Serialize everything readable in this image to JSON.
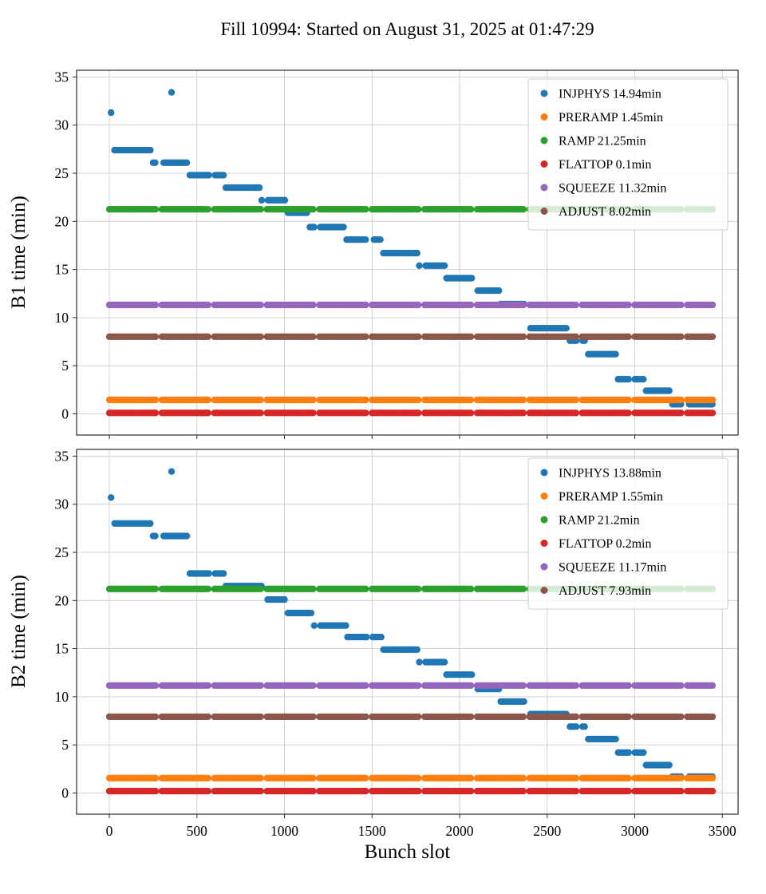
{
  "figure": {
    "title": "Fill 10994: Started on August 31, 2025 at 01:47:29",
    "xlabel": "Bunch slot",
    "background": "#ffffff"
  },
  "chart_data": [
    {
      "type": "scatter",
      "ylabel": "B1 time (min)",
      "xlim": [
        -187,
        3590
      ],
      "ylim": [
        -2.2,
        35.7
      ],
      "xticks": [
        0,
        500,
        1000,
        1500,
        2000,
        2500,
        3000,
        3500
      ],
      "yticks": [
        0,
        5,
        10,
        15,
        20,
        25,
        30,
        35
      ],
      "grid": true,
      "legend_position": "upper right",
      "legend": [
        {
          "label": "INJPHYS 14.94min",
          "color": "#1f77b4"
        },
        {
          "label": "PRERAMP 1.45min",
          "color": "#ff7f0e"
        },
        {
          "label": "RAMP 21.25min",
          "color": "#2ca02c"
        },
        {
          "label": "FLATTOP 0.1min",
          "color": "#d62728"
        },
        {
          "label": "SQUEEZE 11.32min",
          "color": "#9467bd"
        },
        {
          "label": "ADJUST 8.02min",
          "color": "#8c564b"
        }
      ],
      "series": [
        {
          "name": "INJPHYS",
          "color": "#1f77b4",
          "segments": [
            [
              30,
              240,
              27.4
            ],
            [
              250,
              450,
              26.1
            ],
            [
              460,
              655,
              24.8
            ],
            [
              665,
              860,
              23.5
            ],
            [
              870,
              1010,
              22.2
            ],
            [
              1020,
              1135,
              20.9
            ],
            [
              1145,
              1345,
              19.4
            ],
            [
              1355,
              1555,
              18.1
            ],
            [
              1565,
              1760,
              16.7
            ],
            [
              1770,
              1915,
              15.4
            ],
            [
              1925,
              2070,
              14.1
            ],
            [
              2080,
              2225,
              12.8
            ],
            [
              2235,
              2395,
              11.4
            ],
            [
              2405,
              2620,
              8.9
            ],
            [
              2630,
              2725,
              7.6
            ],
            [
              2735,
              2895,
              6.2
            ],
            [
              2905,
              3055,
              3.6
            ],
            [
              3065,
              3205,
              2.4
            ],
            [
              3215,
              3445,
              1.0
            ]
          ],
          "points": [
            [
              10,
              31.3
            ],
            [
              355,
              33.4
            ]
          ]
        },
        {
          "name": "PRERAMP",
          "color": "#ff7f0e",
          "segments": [
            [
              0,
              3445,
              1.45
            ]
          ],
          "points": []
        },
        {
          "name": "RAMP",
          "color": "#2ca02c",
          "segments": [
            [
              0,
              3445,
              21.25
            ]
          ],
          "points": []
        },
        {
          "name": "FLATTOP",
          "color": "#d62728",
          "segments": [
            [
              0,
              3445,
              0.1
            ]
          ],
          "points": []
        },
        {
          "name": "SQUEEZE",
          "color": "#9467bd",
          "segments": [
            [
              0,
              3445,
              11.32
            ]
          ],
          "points": []
        },
        {
          "name": "ADJUST",
          "color": "#8c564b",
          "segments": [
            [
              0,
              3445,
              8.02
            ]
          ],
          "points": []
        }
      ]
    },
    {
      "type": "scatter",
      "ylabel": "B2 time (min)",
      "xlim": [
        -187,
        3590
      ],
      "ylim": [
        -2.2,
        35.7
      ],
      "xticks": [
        0,
        500,
        1000,
        1500,
        2000,
        2500,
        3000,
        3500
      ],
      "yticks": [
        0,
        5,
        10,
        15,
        20,
        25,
        30,
        35
      ],
      "grid": true,
      "legend_position": "upper right",
      "legend": [
        {
          "label": "INJPHYS 13.88min",
          "color": "#1f77b4"
        },
        {
          "label": "PRERAMP 1.55min",
          "color": "#ff7f0e"
        },
        {
          "label": "RAMP 21.2min",
          "color": "#2ca02c"
        },
        {
          "label": "FLATTOP 0.2min",
          "color": "#d62728"
        },
        {
          "label": "SQUEEZE 11.17min",
          "color": "#9467bd"
        },
        {
          "label": "ADJUST 7.93min",
          "color": "#8c564b"
        }
      ],
      "series": [
        {
          "name": "INJPHYS",
          "color": "#1f77b4",
          "segments": [
            [
              30,
              240,
              28.0
            ],
            [
              250,
              450,
              26.7
            ],
            [
              460,
              655,
              22.8
            ],
            [
              665,
              870,
              21.5
            ],
            [
              880,
              1010,
              20.1
            ],
            [
              1020,
              1160,
              18.7
            ],
            [
              1170,
              1350,
              17.4
            ],
            [
              1360,
              1555,
              16.2
            ],
            [
              1565,
              1760,
              14.9
            ],
            [
              1770,
              1915,
              13.6
            ],
            [
              1925,
              2070,
              12.3
            ],
            [
              2080,
              2225,
              10.8
            ],
            [
              2235,
              2395,
              9.5
            ],
            [
              2405,
              2620,
              8.2
            ],
            [
              2630,
              2725,
              6.9
            ],
            [
              2735,
              2895,
              5.6
            ],
            [
              2905,
              3055,
              4.2
            ],
            [
              3065,
              3205,
              2.9
            ],
            [
              3215,
              3445,
              1.7
            ]
          ],
          "points": [
            [
              10,
              30.7
            ],
            [
              355,
              33.4
            ]
          ]
        },
        {
          "name": "PRERAMP",
          "color": "#ff7f0e",
          "segments": [
            [
              0,
              3445,
              1.55
            ]
          ],
          "points": []
        },
        {
          "name": "RAMP",
          "color": "#2ca02c",
          "segments": [
            [
              0,
              3445,
              21.2
            ]
          ],
          "points": []
        },
        {
          "name": "FLATTOP",
          "color": "#d62728",
          "segments": [
            [
              0,
              3445,
              0.2
            ]
          ],
          "points": []
        },
        {
          "name": "SQUEEZE",
          "color": "#9467bd",
          "segments": [
            [
              0,
              3445,
              11.17
            ]
          ],
          "points": []
        },
        {
          "name": "ADJUST",
          "color": "#8c564b",
          "segments": [
            [
              0,
              3445,
              7.93
            ]
          ],
          "points": []
        }
      ]
    }
  ]
}
